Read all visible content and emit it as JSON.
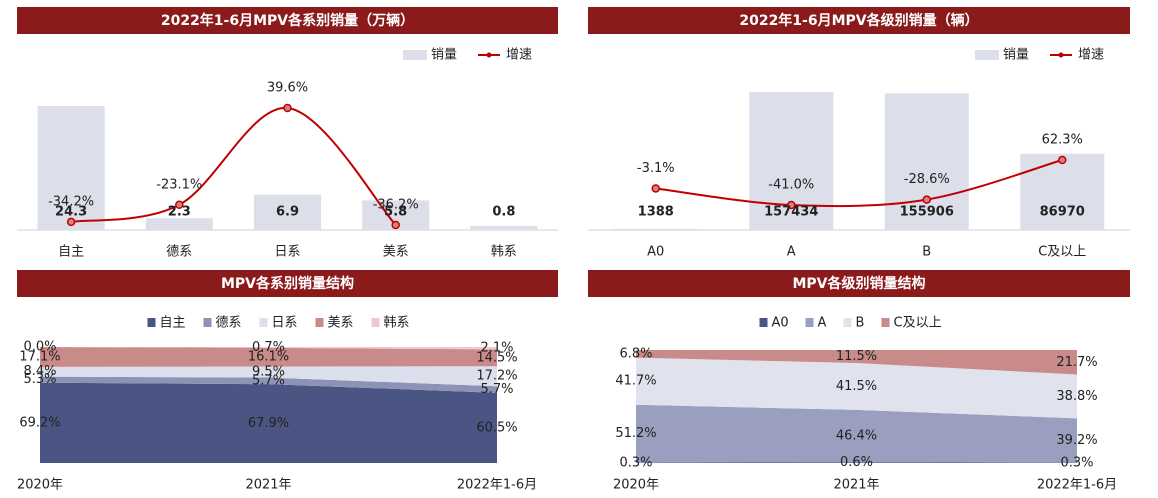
{
  "chart_data": [
    {
      "type": "bar",
      "title": "2022年1-6月MPV各系别销量（万辆）",
      "categories": [
        "自主",
        "德系",
        "日系",
        "美系",
        "韩系"
      ],
      "series": [
        {
          "name": "销量",
          "color": "#dcdeea",
          "values": [
            24.3,
            2.3,
            6.9,
            5.8,
            0.8
          ]
        },
        {
          "name": "增速",
          "type": "line",
          "axis": "y2",
          "color": "#c00000",
          "values": [
            -34.2,
            -23.1,
            39.6,
            -36.2,
            null
          ],
          "value_labels": [
            "-34.2%",
            "-23.1%",
            "39.6%",
            "-36.2%",
            null
          ]
        }
      ]
    },
    {
      "type": "bar",
      "title": "2022年1-6月MPV各级别销量（辆）",
      "categories": [
        "A0",
        "A",
        "B",
        "C及以上"
      ],
      "series": [
        {
          "name": "销量",
          "color": "#dcdeea",
          "values": [
            1388,
            157434,
            155906,
            86970
          ]
        },
        {
          "name": "增速",
          "type": "line",
          "axis": "y2",
          "color": "#c00000",
          "values": [
            -3.1,
            -41.0,
            -28.6,
            62.3
          ],
          "value_labels": [
            "-3.1%",
            "-41.0%",
            "-28.6%",
            "62.3%"
          ]
        }
      ]
    },
    {
      "type": "area",
      "stacked": true,
      "title": "MPV各系别销量结构",
      "x": [
        "2020年",
        "2021年",
        "2022年1-6月"
      ],
      "series": [
        {
          "name": "自主",
          "color": "#4a5583",
          "values": [
            69.2,
            67.9,
            60.5
          ],
          "value_labels": [
            "69.2%",
            "67.9%",
            "60.5%"
          ]
        },
        {
          "name": "德系",
          "color": "#8d93b5",
          "values": [
            5.3,
            5.7,
            5.7
          ],
          "value_labels": [
            "5.3%",
            "5.7%",
            "5.7%"
          ]
        },
        {
          "name": "日系",
          "color": "#dcdfec",
          "values": [
            8.4,
            9.5,
            17.2
          ],
          "value_labels": [
            "8.4%",
            "9.5%",
            "17.2%"
          ]
        },
        {
          "name": "美系",
          "color": "#c98a8a",
          "values": [
            17.1,
            16.1,
            14.5
          ],
          "value_labels": [
            "17.1%",
            "16.1%",
            "14.5%"
          ]
        },
        {
          "name": "韩系",
          "color": "#f0c8cc",
          "values": [
            0.0,
            0.7,
            2.1
          ],
          "value_labels": [
            "0.0%",
            "0.7%",
            "2.1%"
          ]
        }
      ]
    },
    {
      "type": "area",
      "stacked": true,
      "title": "MPV各级别销量结构",
      "x": [
        "2020年",
        "2021年",
        "2022年1-6月"
      ],
      "series": [
        {
          "name": "A0",
          "color": "#4a5583",
          "values": [
            0.3,
            0.6,
            0.3
          ],
          "value_labels": [
            "0.3%",
            "0.6%",
            "0.3%"
          ]
        },
        {
          "name": "A",
          "color": "#9a9fbf",
          "values": [
            51.2,
            46.4,
            39.2
          ],
          "value_labels": [
            "51.2%",
            "46.4%",
            "39.2%"
          ]
        },
        {
          "name": "B",
          "color": "#e0e2ee",
          "values": [
            41.7,
            41.5,
            38.8
          ],
          "value_labels": [
            "41.7%",
            "41.5%",
            "38.8%"
          ]
        },
        {
          "name": "C及以上",
          "color": "#c98a8a",
          "values": [
            6.8,
            11.5,
            21.7
          ],
          "value_labels": [
            "6.8%",
            "11.5%",
            "21.7%"
          ]
        }
      ]
    }
  ]
}
